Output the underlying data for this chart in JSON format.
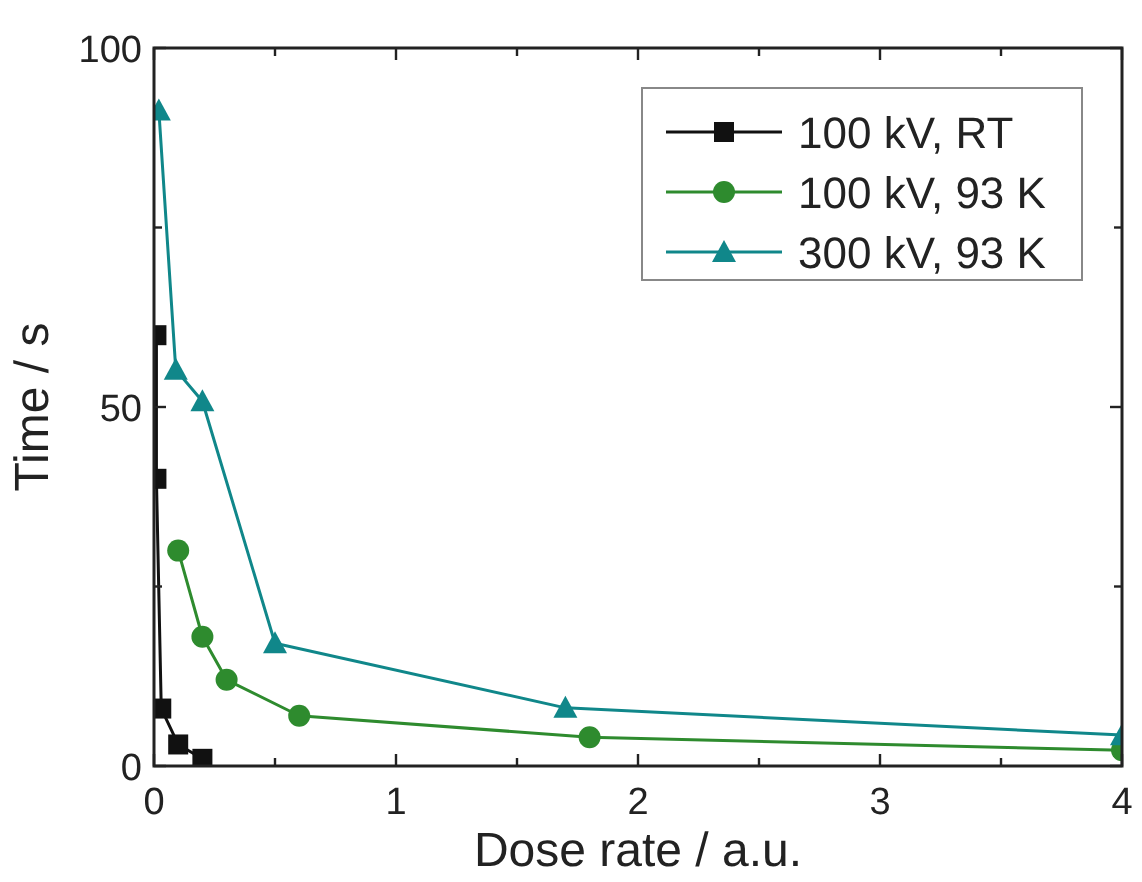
{
  "chart_data": {
    "type": "line",
    "xlabel": "Dose rate / a.u.",
    "ylabel": "Time / s",
    "xlim": [
      0,
      4
    ],
    "ylim": [
      0,
      100
    ],
    "xticks": [
      0,
      {
        "value": 0.5,
        "label": null
      },
      1,
      {
        "value": 1.5,
        "label": null
      },
      2,
      {
        "value": 2.5,
        "label": null
      },
      3,
      {
        "value": 3.5,
        "label": null
      },
      4
    ],
    "yticks": [
      0,
      {
        "value": 25,
        "label": null
      },
      50,
      {
        "value": 75,
        "label": null
      },
      100
    ],
    "grid": false,
    "legend": "top right",
    "series": [
      {
        "name": "100 kV, RT",
        "color": "#111111",
        "marker": "square",
        "x": [
          0.01,
          0.01,
          0.03,
          0.1,
          0.2
        ],
        "values": [
          60,
          40,
          8,
          3,
          1
        ]
      },
      {
        "name": "100 kV, 93 K",
        "color": "#2e8b2e",
        "marker": "circle",
        "x": [
          0.1,
          0.2,
          0.3,
          0.6,
          1.8,
          4
        ],
        "values": [
          30,
          18,
          12,
          7,
          4,
          2.2
        ]
      },
      {
        "name": "300 kV, 93 K",
        "color": "#10878a",
        "marker": "triangle",
        "x": [
          0.02,
          0.09,
          0.2,
          0.5,
          1.7,
          4
        ],
        "values": [
          91.3,
          55.2,
          50.8,
          17.1,
          8.1,
          4.3
        ]
      }
    ]
  }
}
